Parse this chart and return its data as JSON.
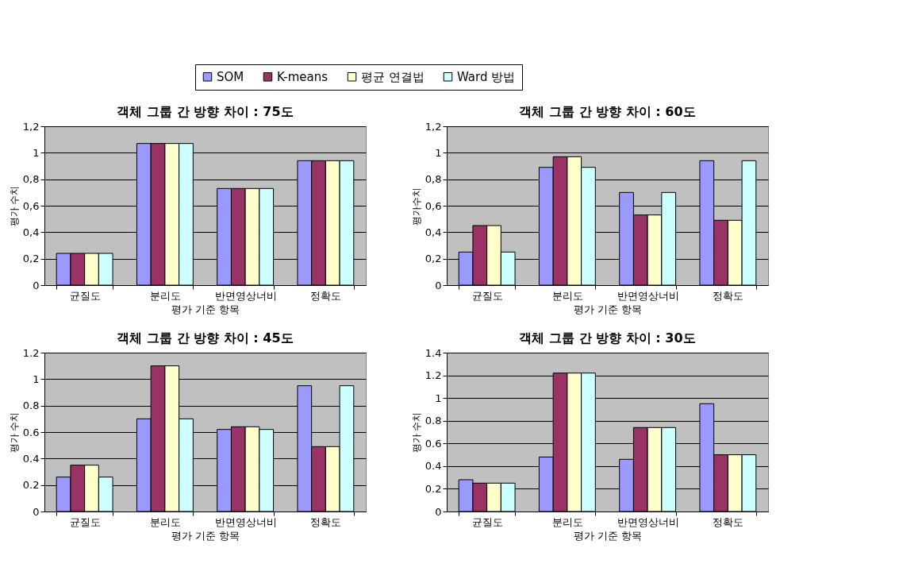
{
  "chart_data": [
    {
      "type": "bar",
      "title": "객체 그룹 간 방향 차이 : 75도",
      "xlabel": "평가 기준 항목",
      "ylabel": "평가 수치",
      "categories": [
        "균질도",
        "분리도",
        "반면영상너비",
        "정확도"
      ],
      "series": [
        {
          "name": "SOM",
          "color": "#9999ff",
          "values": [
            0.24,
            1.07,
            0.73,
            0.94
          ]
        },
        {
          "name": "K-means",
          "color": "#993366",
          "values": [
            0.24,
            1.07,
            0.73,
            0.94
          ]
        },
        {
          "name": "평균 연결법",
          "color": "#ffffcc",
          "values": [
            0.24,
            1.07,
            0.73,
            0.94
          ]
        },
        {
          "name": "Ward 방법",
          "color": "#ccffff",
          "values": [
            0.24,
            1.07,
            0.73,
            0.94
          ]
        }
      ],
      "ylim": [
        0,
        1.2
      ],
      "yticks": [
        0,
        {
          "value": 0.2,
          "label": "0,2"
        },
        {
          "value": 0.4,
          "label": "0,4"
        },
        {
          "value": 0.6,
          "label": "0,6"
        },
        {
          "value": 0.8,
          "label": "0,8"
        },
        1,
        {
          "value": 1.2,
          "label": "1,2"
        }
      ],
      "grid": "y",
      "legend": "top"
    },
    {
      "type": "bar",
      "title": "객체 그룹 간 방향 차이 : 60도",
      "xlabel": "평가 기준 항목",
      "ylabel": "평가수치",
      "categories": [
        "균질도",
        "분리도",
        "반면영상너비",
        "정확도"
      ],
      "series": [
        {
          "color": "#9999ff",
          "values": [
            0.25,
            0.89,
            0.7,
            0.94
          ]
        },
        {
          "color": "#993366",
          "values": [
            0.45,
            0.97,
            0.53,
            0.49
          ]
        },
        {
          "color": "#ffffcc",
          "values": [
            0.45,
            0.97,
            0.53,
            0.49
          ]
        },
        {
          "color": "#ccffff",
          "values": [
            0.25,
            0.89,
            0.7,
            0.94
          ]
        }
      ],
      "ylim": [
        0,
        1.2
      ],
      "yticks": [
        0,
        {
          "value": 0.2,
          "label": "0,2"
        },
        {
          "value": 0.4,
          "label": "0,4"
        },
        {
          "value": 0.6,
          "label": "0,6"
        },
        {
          "value": 0.8,
          "label": "0,8"
        },
        1,
        {
          "value": 1.2,
          "label": "1,2"
        }
      ],
      "grid": "y"
    },
    {
      "type": "bar",
      "title": "객체 그룹 간 방향 차이 : 45도",
      "xlabel": "평가 기준 항목",
      "ylabel": "평가 수치",
      "categories": [
        "균질도",
        "분리도",
        "반면영상너비",
        "정확도"
      ],
      "series": [
        {
          "color": "#9999ff",
          "values": [
            0.26,
            0.7,
            0.62,
            0.95
          ]
        },
        {
          "color": "#993366",
          "values": [
            0.35,
            1.1,
            0.64,
            0.49
          ]
        },
        {
          "color": "#ffffcc",
          "values": [
            0.35,
            1.1,
            0.64,
            0.49
          ]
        },
        {
          "color": "#ccffff",
          "values": [
            0.26,
            0.7,
            0.62,
            0.95
          ]
        }
      ],
      "ylim": [
        0,
        1.2
      ],
      "yticks": [
        0,
        0.2,
        0.4,
        0.6,
        0.8,
        1,
        1.2
      ],
      "grid": "y"
    },
    {
      "type": "bar",
      "title": "객체 그룹 간 방향 차이 : 30도",
      "xlabel": "평가 기준 항목",
      "ylabel": "평가 수치",
      "categories": [
        "균질도",
        "분리도",
        "반면영상너비",
        "정확도"
      ],
      "series": [
        {
          "color": "#9999ff",
          "values": [
            0.28,
            0.48,
            0.46,
            0.95
          ]
        },
        {
          "color": "#993366",
          "values": [
            0.25,
            1.22,
            0.74,
            0.5
          ]
        },
        {
          "color": "#ffffcc",
          "values": [
            0.25,
            1.22,
            0.74,
            0.5
          ]
        },
        {
          "color": "#ccffff",
          "values": [
            0.25,
            1.22,
            0.74,
            0.5
          ]
        }
      ],
      "ylim": [
        0,
        1.4
      ],
      "yticks": [
        0,
        0.2,
        0.4,
        0.6,
        0.8,
        1,
        1.2,
        1.4
      ],
      "grid": "y"
    }
  ]
}
